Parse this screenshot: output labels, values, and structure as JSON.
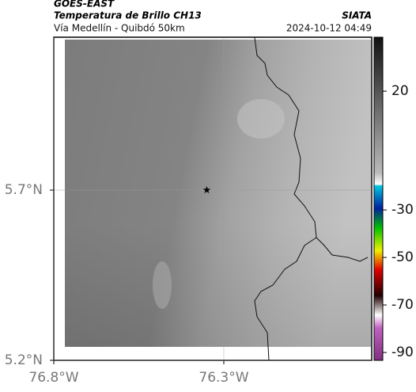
{
  "header": {
    "title": "GOES-EAST",
    "subtitle": "Temperatura de Brillo CH13",
    "route": "Vía Medellín - Quibdó 50km",
    "source": "SIATA",
    "timestamp": "2024-10-12 04:49"
  },
  "map": {
    "xlim": [
      -76.8,
      -75.865
    ],
    "ylim": [
      5.2,
      6.149
    ],
    "xticks": [
      {
        "value": -76.8,
        "label": "76.8°W"
      },
      {
        "value": -76.3,
        "label": "76.3°W"
      }
    ],
    "yticks": [
      {
        "value": 5.2,
        "label": "5.2°N"
      },
      {
        "value": 5.7,
        "label": "5.7°N"
      }
    ],
    "marker": {
      "lon": -76.35,
      "lat": 5.7
    }
  },
  "colorbar": {
    "lim": [
      42.7,
      -93.3
    ],
    "ticks": [
      20,
      -30,
      -50,
      -70,
      -90
    ]
  }
}
